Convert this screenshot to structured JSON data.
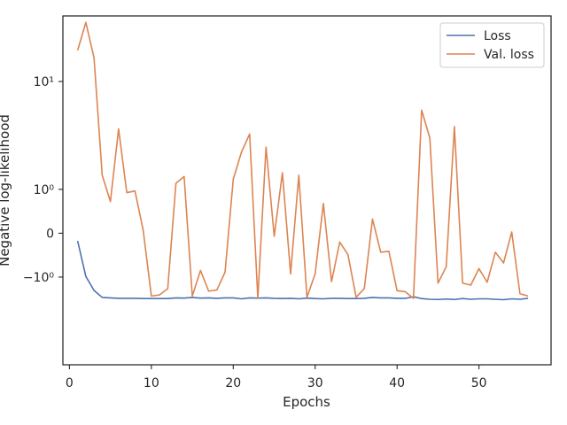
{
  "chart_data": {
    "type": "line",
    "xlabel": "Epochs",
    "ylabel": "Negative log-likelihood",
    "xlim": [
      -0.8,
      58.8
    ],
    "ylim": [
      -7.0,
      30.0
    ],
    "yscale": "symlog",
    "x_ticks": [
      0,
      10,
      20,
      30,
      40,
      50
    ],
    "y_ticks": [
      {
        "value": 10,
        "label": "10¹"
      },
      {
        "value": 1,
        "label": "10⁰"
      },
      {
        "value": 0,
        "label": "0"
      },
      {
        "value": -1,
        "label": "−10⁰"
      }
    ],
    "grid": false,
    "legend": {
      "position": "top-right"
    },
    "x": [
      1,
      2,
      3,
      4,
      5,
      6,
      7,
      8,
      9,
      10,
      11,
      12,
      13,
      14,
      15,
      16,
      17,
      18,
      19,
      20,
      21,
      22,
      23,
      24,
      25,
      26,
      27,
      28,
      29,
      30,
      31,
      32,
      33,
      34,
      35,
      36,
      37,
      38,
      39,
      40,
      41,
      42,
      43,
      44,
      45,
      46,
      47,
      48,
      49,
      50,
      51,
      52,
      53,
      54,
      55,
      56
    ],
    "series": [
      {
        "name": "Loss",
        "color": "#4c72b0",
        "values": [
          -0.13,
          -0.98,
          -1.47,
          -1.76,
          -1.78,
          -1.8,
          -1.8,
          -1.8,
          -1.81,
          -1.81,
          -1.81,
          -1.81,
          -1.78,
          -1.79,
          -1.76,
          -1.79,
          -1.78,
          -1.8,
          -1.78,
          -1.78,
          -1.82,
          -1.78,
          -1.79,
          -1.78,
          -1.8,
          -1.81,
          -1.8,
          -1.82,
          -1.79,
          -1.81,
          -1.82,
          -1.8,
          -1.8,
          -1.81,
          -1.81,
          -1.8,
          -1.76,
          -1.78,
          -1.78,
          -1.8,
          -1.8,
          -1.73,
          -1.81,
          -1.84,
          -1.85,
          -1.83,
          -1.85,
          -1.81,
          -1.84,
          -1.82,
          -1.82,
          -1.84,
          -1.86,
          -1.82,
          -1.84,
          -1.8
        ]
      },
      {
        "name": "Val. loss",
        "color": "#dd8452",
        "values": [
          17.0,
          27.0,
          15.0,
          1.5,
          0.65,
          4.2,
          0.9,
          0.95,
          0.05,
          -1.7,
          -1.65,
          -1.4,
          1.2,
          1.45,
          -1.7,
          -0.8,
          -1.5,
          -1.45,
          -0.85,
          1.35,
          2.6,
          3.8,
          -1.8,
          2.9,
          -0.05,
          1.6,
          -0.9,
          1.5,
          -1.75,
          -0.9,
          0.6,
          -1.15,
          -0.15,
          -0.4,
          -1.75,
          -1.4,
          0.25,
          -0.35,
          -0.33,
          -1.48,
          -1.52,
          -1.8,
          6.0,
          3.5,
          -1.2,
          -0.7,
          4.4,
          -1.2,
          -1.27,
          -0.75,
          -1.17,
          -0.35,
          -0.6,
          0.02,
          -1.6,
          -1.7
        ]
      }
    ]
  }
}
